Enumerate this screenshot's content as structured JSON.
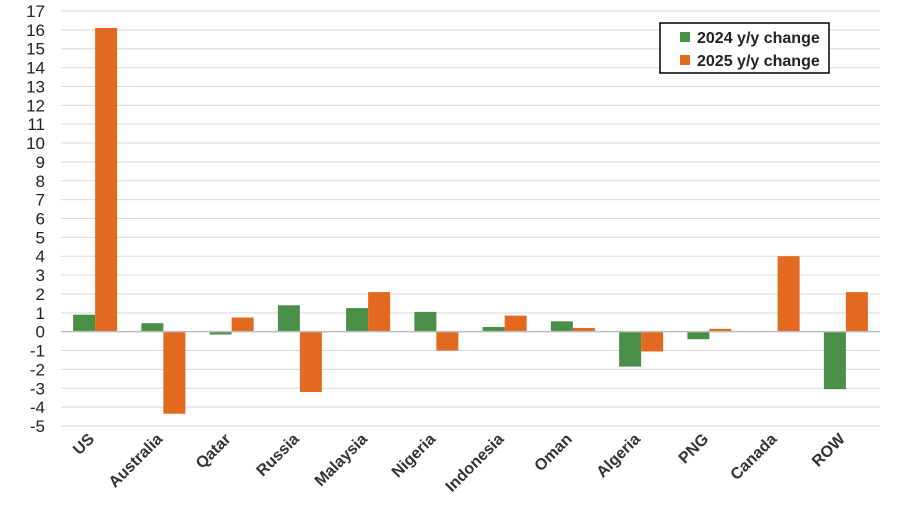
{
  "chart_data": {
    "type": "bar",
    "title": "",
    "xlabel": "",
    "ylabel": "",
    "ylim": [
      -5,
      17
    ],
    "yticks": [
      17,
      16,
      15,
      14,
      13,
      12,
      11,
      10,
      9,
      8,
      7,
      6,
      5,
      4,
      3,
      2,
      1,
      0,
      -1,
      -2,
      -3,
      -4,
      -5
    ],
    "ytick_labels": [
      "17",
      "16",
      "15",
      "14",
      "13",
      "12",
      "11",
      "10",
      "9",
      "8",
      "7",
      "6",
      "5",
      "4",
      "3",
      "2",
      "1",
      "0",
      "-1",
      "-2",
      "-3",
      "-4",
      "-5"
    ],
    "grid": true,
    "legend_position": "top-right",
    "categories": [
      "US",
      "Australia",
      "Qatar",
      "Russia",
      "Malaysia",
      "Nigeria",
      "Indonesia",
      "Oman",
      "Algeria",
      "PNG",
      "Canada",
      "ROW"
    ],
    "series": [
      {
        "name": "2024 y/y change",
        "color": "#4a8f48",
        "values": [
          0.9,
          0.45,
          -0.15,
          1.4,
          1.25,
          1.05,
          0.25,
          0.55,
          -1.85,
          -0.4,
          0.0,
          -3.05
        ]
      },
      {
        "name": "2025 y/y change",
        "color": "#e2691f",
        "values": [
          16.1,
          -4.35,
          0.75,
          -3.2,
          2.1,
          -1.0,
          0.85,
          0.2,
          -1.05,
          0.15,
          4.0,
          2.1
        ]
      }
    ]
  }
}
